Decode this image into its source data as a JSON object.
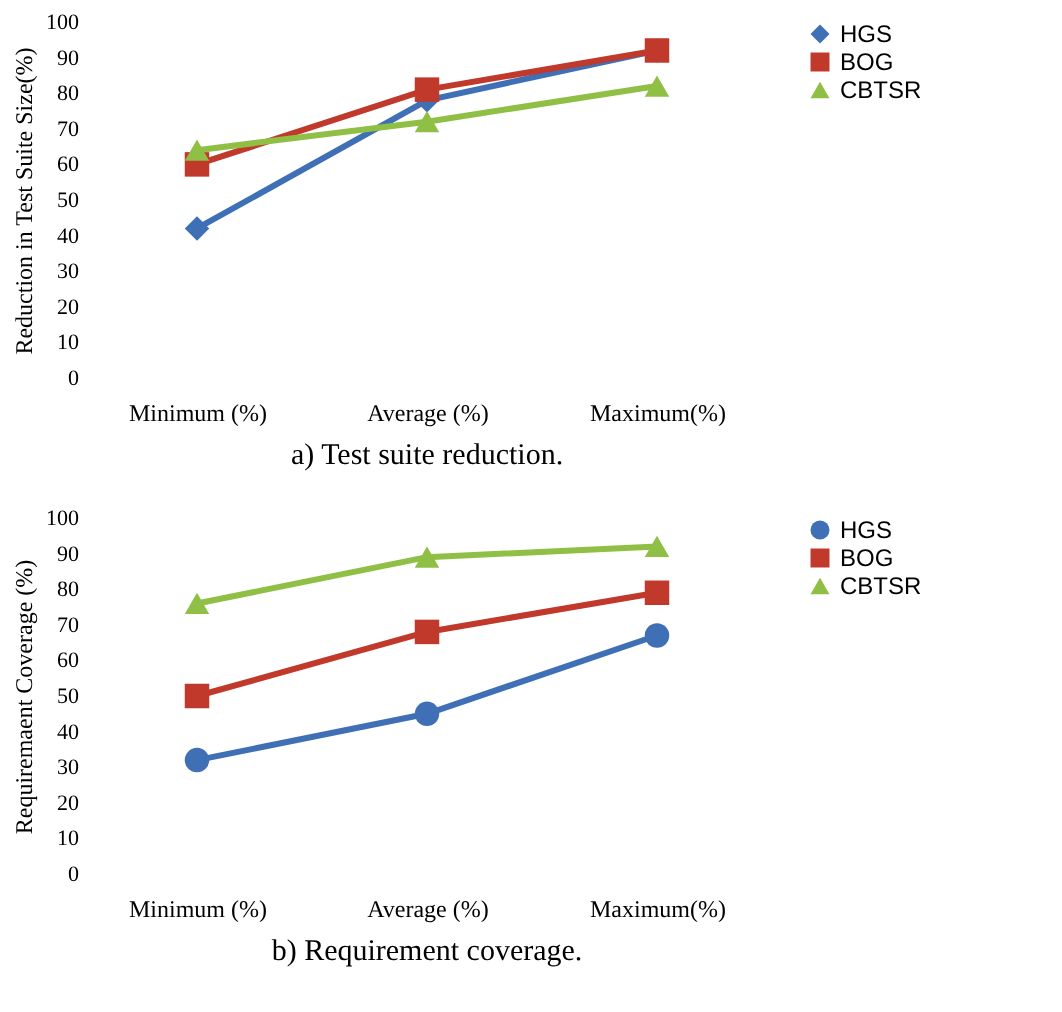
{
  "chart_data": [
    {
      "type": "line",
      "title": "a)  Test suite reduction.",
      "ylabel": "Reduction in Test Suite Size(%)",
      "categories": [
        "Minimum (%)",
        "Average (%)",
        "Maximum(%)"
      ],
      "ylim": [
        0,
        100
      ],
      "yticks": [
        0,
        10,
        20,
        30,
        40,
        50,
        60,
        70,
        80,
        90,
        100
      ],
      "grid": false,
      "legend": "right",
      "series": [
        {
          "name": "HGS",
          "color": "#3f6fb5",
          "marker": "diamond",
          "values": [
            42,
            78,
            92
          ]
        },
        {
          "name": "BOG",
          "color": "#c0392b",
          "marker": "square",
          "values": [
            60,
            81,
            92
          ]
        },
        {
          "name": "CBTSR",
          "color": "#8fbf45",
          "marker": "triangle",
          "values": [
            64,
            72,
            82
          ]
        }
      ]
    },
    {
      "type": "line",
      "title": "b) Requirement coverage.",
      "ylabel": "Requiremaent Coverage (%)",
      "categories": [
        "Minimum (%)",
        "Average (%)",
        "Maximum(%)"
      ],
      "ylim": [
        0,
        100
      ],
      "yticks": [
        0,
        10,
        20,
        30,
        40,
        50,
        60,
        70,
        80,
        90,
        100
      ],
      "grid": false,
      "legend": "right",
      "series": [
        {
          "name": "HGS",
          "color": "#3f6fb5",
          "marker": "circle",
          "values": [
            32,
            45,
            67
          ]
        },
        {
          "name": "BOG",
          "color": "#c0392b",
          "marker": "square",
          "values": [
            50,
            68,
            79
          ]
        },
        {
          "name": "CBTSR",
          "color": "#8fbf45",
          "marker": "triangle",
          "values": [
            76,
            89,
            92
          ]
        }
      ]
    }
  ]
}
